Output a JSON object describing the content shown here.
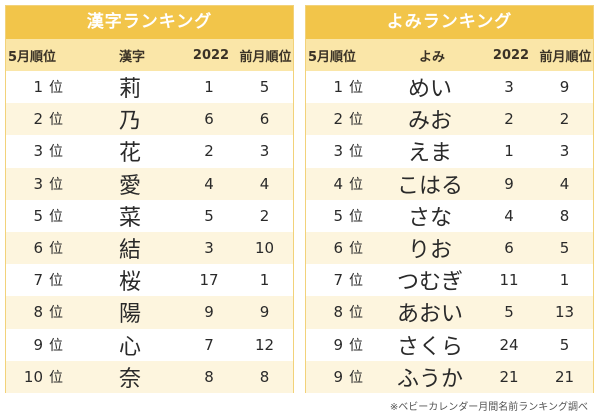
{
  "kanji_table": {
    "title": "漢字ランキング",
    "headers": [
      "5月順位",
      "漢字",
      "2022",
      "前月順位"
    ],
    "rank_suffix": "位",
    "rows": [
      {
        "rank": "1",
        "name": "莉",
        "y2022": "1",
        "prev": "5"
      },
      {
        "rank": "2",
        "name": "乃",
        "y2022": "6",
        "prev": "6"
      },
      {
        "rank": "3",
        "name": "花",
        "y2022": "2",
        "prev": "3"
      },
      {
        "rank": "3",
        "name": "愛",
        "y2022": "4",
        "prev": "4"
      },
      {
        "rank": "5",
        "name": "菜",
        "y2022": "5",
        "prev": "2"
      },
      {
        "rank": "6",
        "name": "結",
        "y2022": "3",
        "prev": "10"
      },
      {
        "rank": "7",
        "name": "桜",
        "y2022": "17",
        "prev": "1"
      },
      {
        "rank": "8",
        "name": "陽",
        "y2022": "9",
        "prev": "9"
      },
      {
        "rank": "9",
        "name": "心",
        "y2022": "7",
        "prev": "12"
      },
      {
        "rank": "10",
        "name": "奈",
        "y2022": "8",
        "prev": "8"
      }
    ]
  },
  "yomi_table": {
    "title": "よみランキング",
    "headers": [
      "5月順位",
      "よみ",
      "2022",
      "前月順位"
    ],
    "rank_suffix": "位",
    "rows": [
      {
        "rank": "1",
        "name": "めい",
        "y2022": "3",
        "prev": "9"
      },
      {
        "rank": "2",
        "name": "みお",
        "y2022": "2",
        "prev": "2"
      },
      {
        "rank": "3",
        "name": "えま",
        "y2022": "1",
        "prev": "3"
      },
      {
        "rank": "4",
        "name": "こはる",
        "y2022": "9",
        "prev": "4"
      },
      {
        "rank": "5",
        "name": "さな",
        "y2022": "4",
        "prev": "8"
      },
      {
        "rank": "6",
        "name": "りお",
        "y2022": "6",
        "prev": "5"
      },
      {
        "rank": "7",
        "name": "つむぎ",
        "y2022": "11",
        "prev": "1"
      },
      {
        "rank": "8",
        "name": "あおい",
        "y2022": "5",
        "prev": "13"
      },
      {
        "rank": "9",
        "name": "さくら",
        "y2022": "24",
        "prev": "5"
      },
      {
        "rank": "9",
        "name": "ふうか",
        "y2022": "21",
        "prev": "21"
      }
    ]
  },
  "footnote": "※ベビーカレンダー月間名前ランキング調べ",
  "colors": {
    "title_bg": "#f2c54a",
    "header_bg": "#fae6a8",
    "stripe": "#fdf5de",
    "border": "#f2d27a"
  }
}
